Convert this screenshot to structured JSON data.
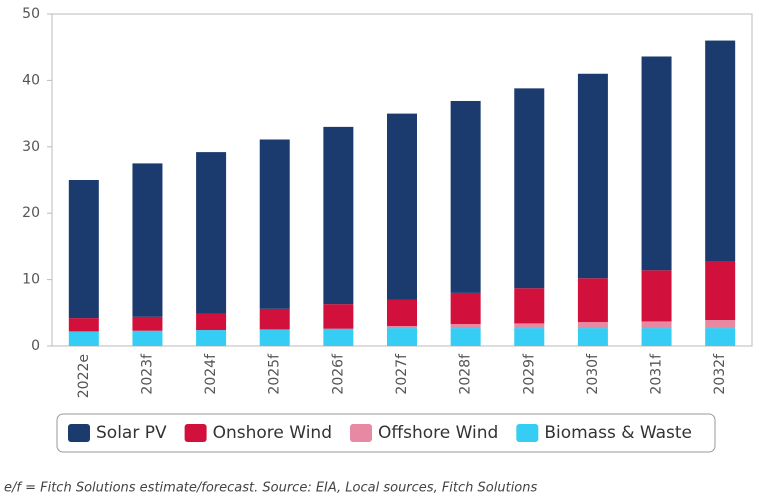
{
  "chart_data": {
    "type": "stacked-bar",
    "categories": [
      "2022e",
      "2023f",
      "2024f",
      "2025f",
      "2026f",
      "2027f",
      "2028f",
      "2029f",
      "2030f",
      "2031f",
      "2032f"
    ],
    "series": [
      {
        "name": "Solar PV",
        "color": "#1b3b6f",
        "values": [
          20.8,
          23.1,
          24.3,
          25.5,
          26.7,
          28,
          28.9,
          30.1,
          30.8,
          32.2,
          33.2
        ]
      },
      {
        "name": "Onshore Wind",
        "color": "#d2103c",
        "values": [
          2.0,
          2.1,
          2.5,
          3.1,
          3.7,
          4.0,
          4.7,
          5.3,
          6.6,
          7.7,
          8.9
        ]
      },
      {
        "name": "Offshore Wind",
        "color": "#e889a3",
        "values": [
          0,
          0,
          0,
          0,
          0,
          0.3,
          0.6,
          0.7,
          0.9,
          1.0,
          1.2
        ]
      },
      {
        "name": "Biomass & Waste",
        "color": "#35cdf4",
        "values": [
          2.2,
          2.3,
          2.4,
          2.5,
          2.6,
          2.7,
          2.7,
          2.7,
          2.7,
          2.7,
          2.7
        ]
      }
    ],
    "ylim": [
      0,
      50
    ],
    "yticks": [
      0,
      10,
      20,
      30,
      40,
      50
    ],
    "grid": false,
    "legend": "bottom",
    "footnote": "e/f = Fitch Solutions estimate/forecast. Source: EIA, Local sources, Fitch Solutions"
  }
}
